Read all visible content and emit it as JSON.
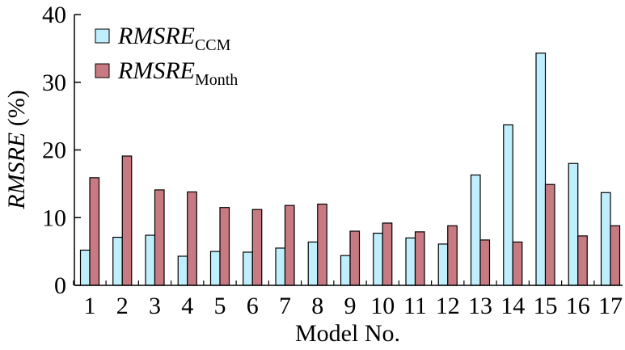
{
  "chart_data": {
    "type": "bar",
    "categories": [
      "1",
      "2",
      "3",
      "4",
      "5",
      "6",
      "7",
      "8",
      "9",
      "10",
      "11",
      "12",
      "13",
      "14",
      "15",
      "16",
      "17"
    ],
    "series": [
      {
        "name": "RMSRE_CCM",
        "name_main": "RMSRE",
        "name_sub": "CCM",
        "color": "#bfeefd",
        "values": [
          5.2,
          7.1,
          7.4,
          4.3,
          5.0,
          4.9,
          5.5,
          6.4,
          4.4,
          7.7,
          7.0,
          6.1,
          16.3,
          23.7,
          34.3,
          18.0,
          13.7
        ]
      },
      {
        "name": "RMSRE_Month",
        "name_main": "RMSRE",
        "name_sub": "Month",
        "color": "#c87a82",
        "values": [
          15.9,
          19.1,
          14.1,
          13.8,
          11.5,
          11.2,
          11.8,
          12.0,
          8.0,
          9.2,
          7.9,
          8.8,
          6.7,
          6.4,
          14.9,
          7.3,
          8.8
        ]
      }
    ],
    "ylim": [
      0,
      40
    ],
    "yticks": [
      0,
      10,
      20,
      30,
      40
    ],
    "xlabel": "Model No.",
    "ylabel_main": "RMSRE",
    "ylabel_unit": " (%)",
    "legend_position": "top-left",
    "grid": false,
    "bar_edge_color": "#000000"
  }
}
